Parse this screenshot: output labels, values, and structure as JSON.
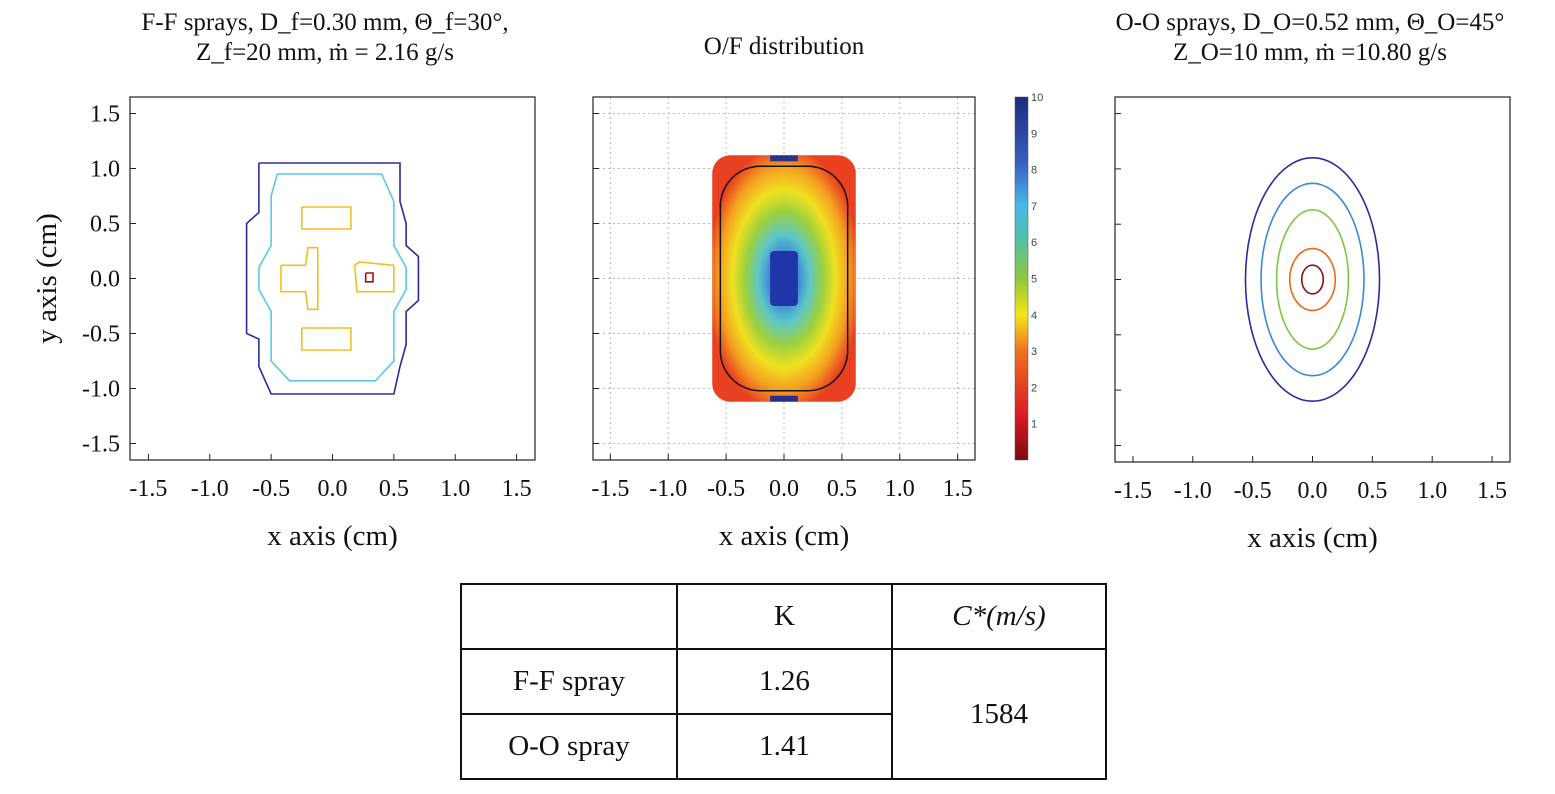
{
  "chart_data": [
    {
      "type": "contour",
      "title_line1": "F-F sprays, D_f=0.30 mm, Θ_f=30°,",
      "title_line2": "Z_f=20 mm, ṁ = 2.16 g/s",
      "xlabel": "x axis (cm)",
      "ylabel": "y axis (cm)",
      "xlim": [
        -1.65,
        1.65
      ],
      "ylim": [
        -1.65,
        1.65
      ],
      "xticks": [
        "-1.5",
        "-1.0",
        "-0.5",
        "0.0",
        "0.5",
        "1.0",
        "1.5"
      ],
      "yticks": [
        "1.5",
        "1.0",
        "0.5",
        "0.0",
        "-0.5",
        "-1.0",
        "-1.5"
      ],
      "contours": [
        {
          "color": "#2b2b9c",
          "points": [
            [
              -0.6,
              1.05
            ],
            [
              0.55,
              1.05
            ],
            [
              0.55,
              0.7
            ],
            [
              0.6,
              0.5
            ],
            [
              0.6,
              0.3
            ],
            [
              0.7,
              0.2
            ],
            [
              0.7,
              -0.2
            ],
            [
              0.6,
              -0.3
            ],
            [
              0.6,
              -0.6
            ],
            [
              0.55,
              -0.8
            ],
            [
              0.5,
              -1.05
            ],
            [
              -0.5,
              -1.05
            ],
            [
              -0.6,
              -0.8
            ],
            [
              -0.6,
              -0.55
            ],
            [
              -0.7,
              -0.5
            ],
            [
              -0.7,
              0.5
            ],
            [
              -0.6,
              0.6
            ],
            [
              -0.6,
              1.05
            ]
          ]
        },
        {
          "color": "#5ac8e6",
          "points": [
            [
              -0.45,
              0.95
            ],
            [
              0.4,
              0.95
            ],
            [
              0.5,
              0.7
            ],
            [
              0.5,
              0.3
            ],
            [
              0.6,
              0.1
            ],
            [
              0.6,
              -0.1
            ],
            [
              0.5,
              -0.3
            ],
            [
              0.5,
              -0.75
            ],
            [
              0.35,
              -0.93
            ],
            [
              -0.35,
              -0.93
            ],
            [
              -0.5,
              -0.75
            ],
            [
              -0.5,
              -0.3
            ],
            [
              -0.6,
              -0.1
            ],
            [
              -0.6,
              0.1
            ],
            [
              -0.5,
              0.3
            ],
            [
              -0.5,
              0.75
            ],
            [
              -0.45,
              0.95
            ]
          ]
        },
        {
          "color": "#f0c020",
          "points": [
            [
              -0.25,
              0.65
            ],
            [
              0.15,
              0.65
            ],
            [
              0.15,
              0.45
            ],
            [
              -0.25,
              0.45
            ],
            [
              -0.25,
              0.65
            ]
          ]
        },
        {
          "color": "#f0c020",
          "points": [
            [
              -0.25,
              -0.45
            ],
            [
              0.15,
              -0.45
            ],
            [
              0.15,
              -0.65
            ],
            [
              -0.25,
              -0.65
            ],
            [
              -0.25,
              -0.45
            ]
          ]
        },
        {
          "color": "#f0c020",
          "points": [
            [
              -0.42,
              0.12
            ],
            [
              -0.22,
              0.12
            ],
            [
              -0.2,
              0.28
            ],
            [
              -0.12,
              0.28
            ],
            [
              -0.12,
              -0.28
            ],
            [
              -0.2,
              -0.28
            ],
            [
              -0.22,
              -0.12
            ],
            [
              -0.42,
              -0.12
            ],
            [
              -0.42,
              0.12
            ]
          ]
        },
        {
          "color": "#f0c020",
          "points": [
            [
              0.18,
              0.12
            ],
            [
              0.22,
              0.15
            ],
            [
              0.5,
              0.12
            ],
            [
              0.5,
              -0.12
            ],
            [
              0.2,
              -0.12
            ],
            [
              0.18,
              0.12
            ]
          ]
        },
        {
          "color": "#a01010",
          "points": [
            [
              0.27,
              0.05
            ],
            [
              0.33,
              0.05
            ],
            [
              0.33,
              -0.03
            ],
            [
              0.27,
              -0.03
            ],
            [
              0.27,
              0.05
            ]
          ]
        }
      ]
    },
    {
      "type": "heatmap",
      "title": "O/F distribution",
      "xlabel": "x axis (cm)",
      "xlim": [
        -1.65,
        1.65
      ],
      "ylim": [
        -1.65,
        1.65
      ],
      "grid": true,
      "xticks": [
        "-1.5",
        "-1.0",
        "-0.5",
        "0.0",
        "0.5",
        "1.0",
        "1.5"
      ],
      "colorbar": {
        "min": 0,
        "max": 10,
        "ticks": [
          "10",
          "9",
          "8",
          "7",
          "6",
          "5",
          "4",
          "3",
          "2",
          "1"
        ],
        "colormap": "jet"
      }
    },
    {
      "type": "contour",
      "title_line1": "O-O sprays, D_O=0.52 mm, Θ_O=45°",
      "title_line2": "Z_O=10 mm, ṁ =10.80 g/s",
      "xlabel": "x axis (cm)",
      "xlim": [
        -1.65,
        1.65
      ],
      "ylim": [
        -1.65,
        1.65
      ],
      "xticks": [
        "-1.5",
        "-1.0",
        "-0.5",
        "0.0",
        "0.5",
        "1.0",
        "1.5"
      ],
      "contours": [
        {
          "color": "#2b2b9c",
          "rx": 0.56,
          "ry": 1.1
        },
        {
          "color": "#3a8ad8",
          "rx": 0.43,
          "ry": 0.87
        },
        {
          "color": "#7cc840",
          "rx": 0.3,
          "ry": 0.63
        },
        {
          "color": "#e86a1a",
          "rx": 0.19,
          "ry": 0.28
        },
        {
          "color": "#8a1010",
          "rx": 0.09,
          "ry": 0.13
        }
      ]
    }
  ],
  "table": {
    "headers": [
      "",
      "K",
      "C*(m/s)"
    ],
    "rows": [
      {
        "label": "F-F spray",
        "k": "1.26"
      },
      {
        "label": "O-O spray",
        "k": "1.41"
      }
    ],
    "c_star": "1584"
  }
}
